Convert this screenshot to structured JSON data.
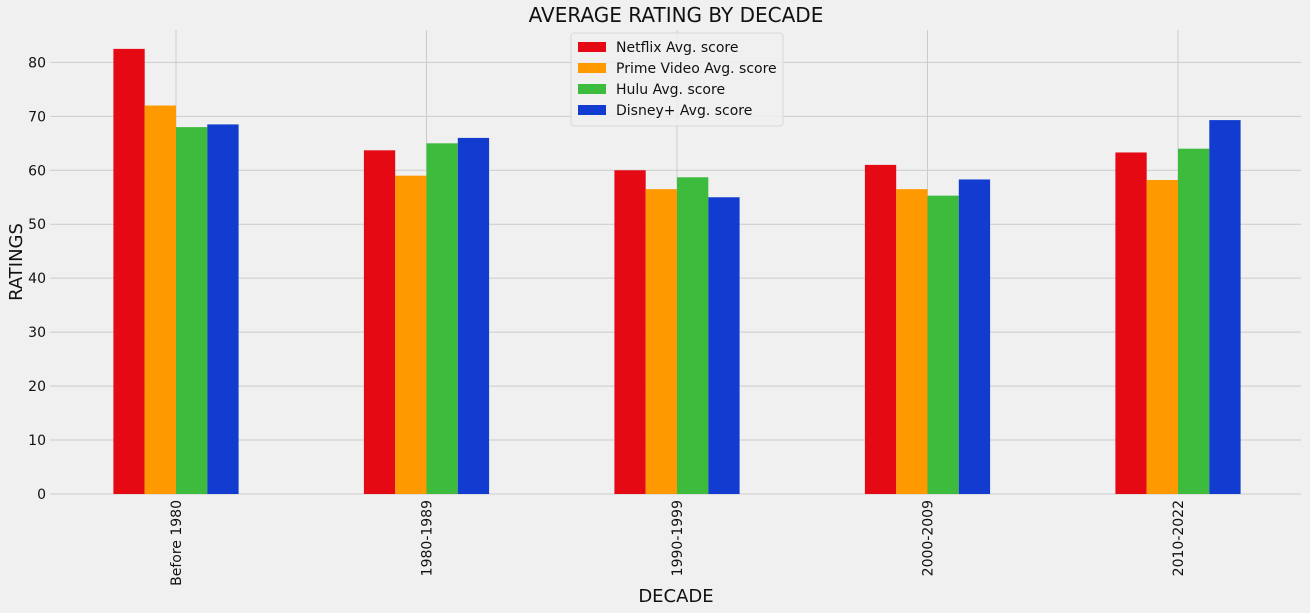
{
  "chart_data": {
    "type": "bar",
    "title": "AVERAGE RATING BY DECADE",
    "xlabel": "DECADE",
    "ylabel": "RATINGS",
    "categories": [
      "Before 1980",
      "1980-1989",
      "1990-1999",
      "2000-2009",
      "2010-2022"
    ],
    "series": [
      {
        "name": "Netflix Avg. score",
        "color": "#e50914",
        "values": [
          82.5,
          63.7,
          60.0,
          61.0,
          63.3
        ]
      },
      {
        "name": "Prime Video Avg. score",
        "color": "#ff9900",
        "values": [
          72.0,
          59.0,
          56.5,
          56.5,
          58.2
        ]
      },
      {
        "name": "Hulu Avg. score",
        "color": "#3dbb3d",
        "values": [
          68.0,
          65.0,
          58.7,
          55.3,
          64.0
        ]
      },
      {
        "name": "Disney+ Avg. score",
        "color": "#113ccf",
        "values": [
          68.5,
          66.0,
          55.0,
          58.3,
          69.3
        ]
      }
    ],
    "ylim": [
      0,
      86
    ],
    "yticks": [
      0,
      10,
      20,
      30,
      40,
      50,
      60,
      70,
      80
    ],
    "grid": true,
    "legend_position": "top-center",
    "x_tick_rotation": -90,
    "background": "#f0f0f0",
    "grid_color": "#cbcbcb"
  }
}
